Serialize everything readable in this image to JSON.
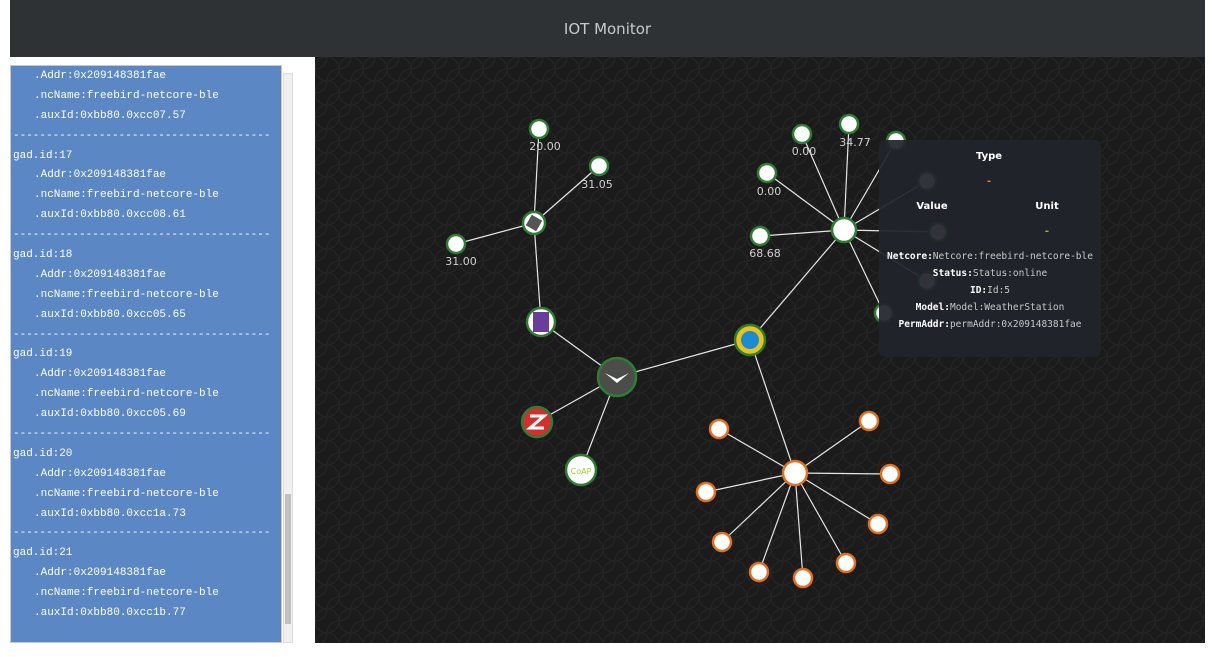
{
  "header": {
    "title": "IOT Monitor"
  },
  "log": {
    "separator": "---------------------------------------",
    "entries": [
      {
        "addr": ".Addr:0x209148381fae",
        "ncName": ".ncName:freebird-netcore-ble",
        "auxId": ".auxId:0xbb80.0xcc07.57"
      },
      {
        "id": "gad.id:17",
        "addr": ".Addr:0x209148381fae",
        "ncName": ".ncName:freebird-netcore-ble",
        "auxId": ".auxId:0xbb80.0xcc08.61"
      },
      {
        "id": "gad.id:18",
        "addr": ".Addr:0x209148381fae",
        "ncName": ".ncName:freebird-netcore-ble",
        "auxId": ".auxId:0xbb80.0xcc05.65"
      },
      {
        "id": "gad.id:19",
        "addr": ".Addr:0x209148381fae",
        "ncName": ".ncName:freebird-netcore-ble",
        "auxId": ".auxId:0xbb80.0xcc05.69"
      },
      {
        "id": "gad.id:20",
        "addr": ".Addr:0x209148381fae",
        "ncName": ".ncName:freebird-netcore-ble",
        "auxId": ".auxId:0xbb80.0xcc1a.73"
      },
      {
        "id": "gad.id:21",
        "addr": ".Addr:0x209148381fae",
        "ncName": ".ncName:freebird-netcore-ble",
        "auxId": ".auxId:0xbb80.0xcc1b.77"
      }
    ]
  },
  "graph": {
    "node_labels": [
      "20.00",
      "31.05",
      "31.00",
      "0.00",
      "34.77",
      "0.00",
      "68.68"
    ],
    "coap_label": "CoAP"
  },
  "tooltip": {
    "type_label": "Type",
    "type_value": "-",
    "value_label": "Value",
    "unit_label": "Unit",
    "unit_value": "-",
    "rows": [
      {
        "key": "Netcore:",
        "value": "Netcore:freebird-netcore-ble"
      },
      {
        "key": "Status:",
        "value": "Status:online"
      },
      {
        "key": "ID:",
        "value": "Id:5"
      },
      {
        "key": "Model:",
        "value": "Model:WeatherStation"
      },
      {
        "key": "PermAddr:",
        "value": "permAddr:0x209148381fae"
      }
    ]
  }
}
